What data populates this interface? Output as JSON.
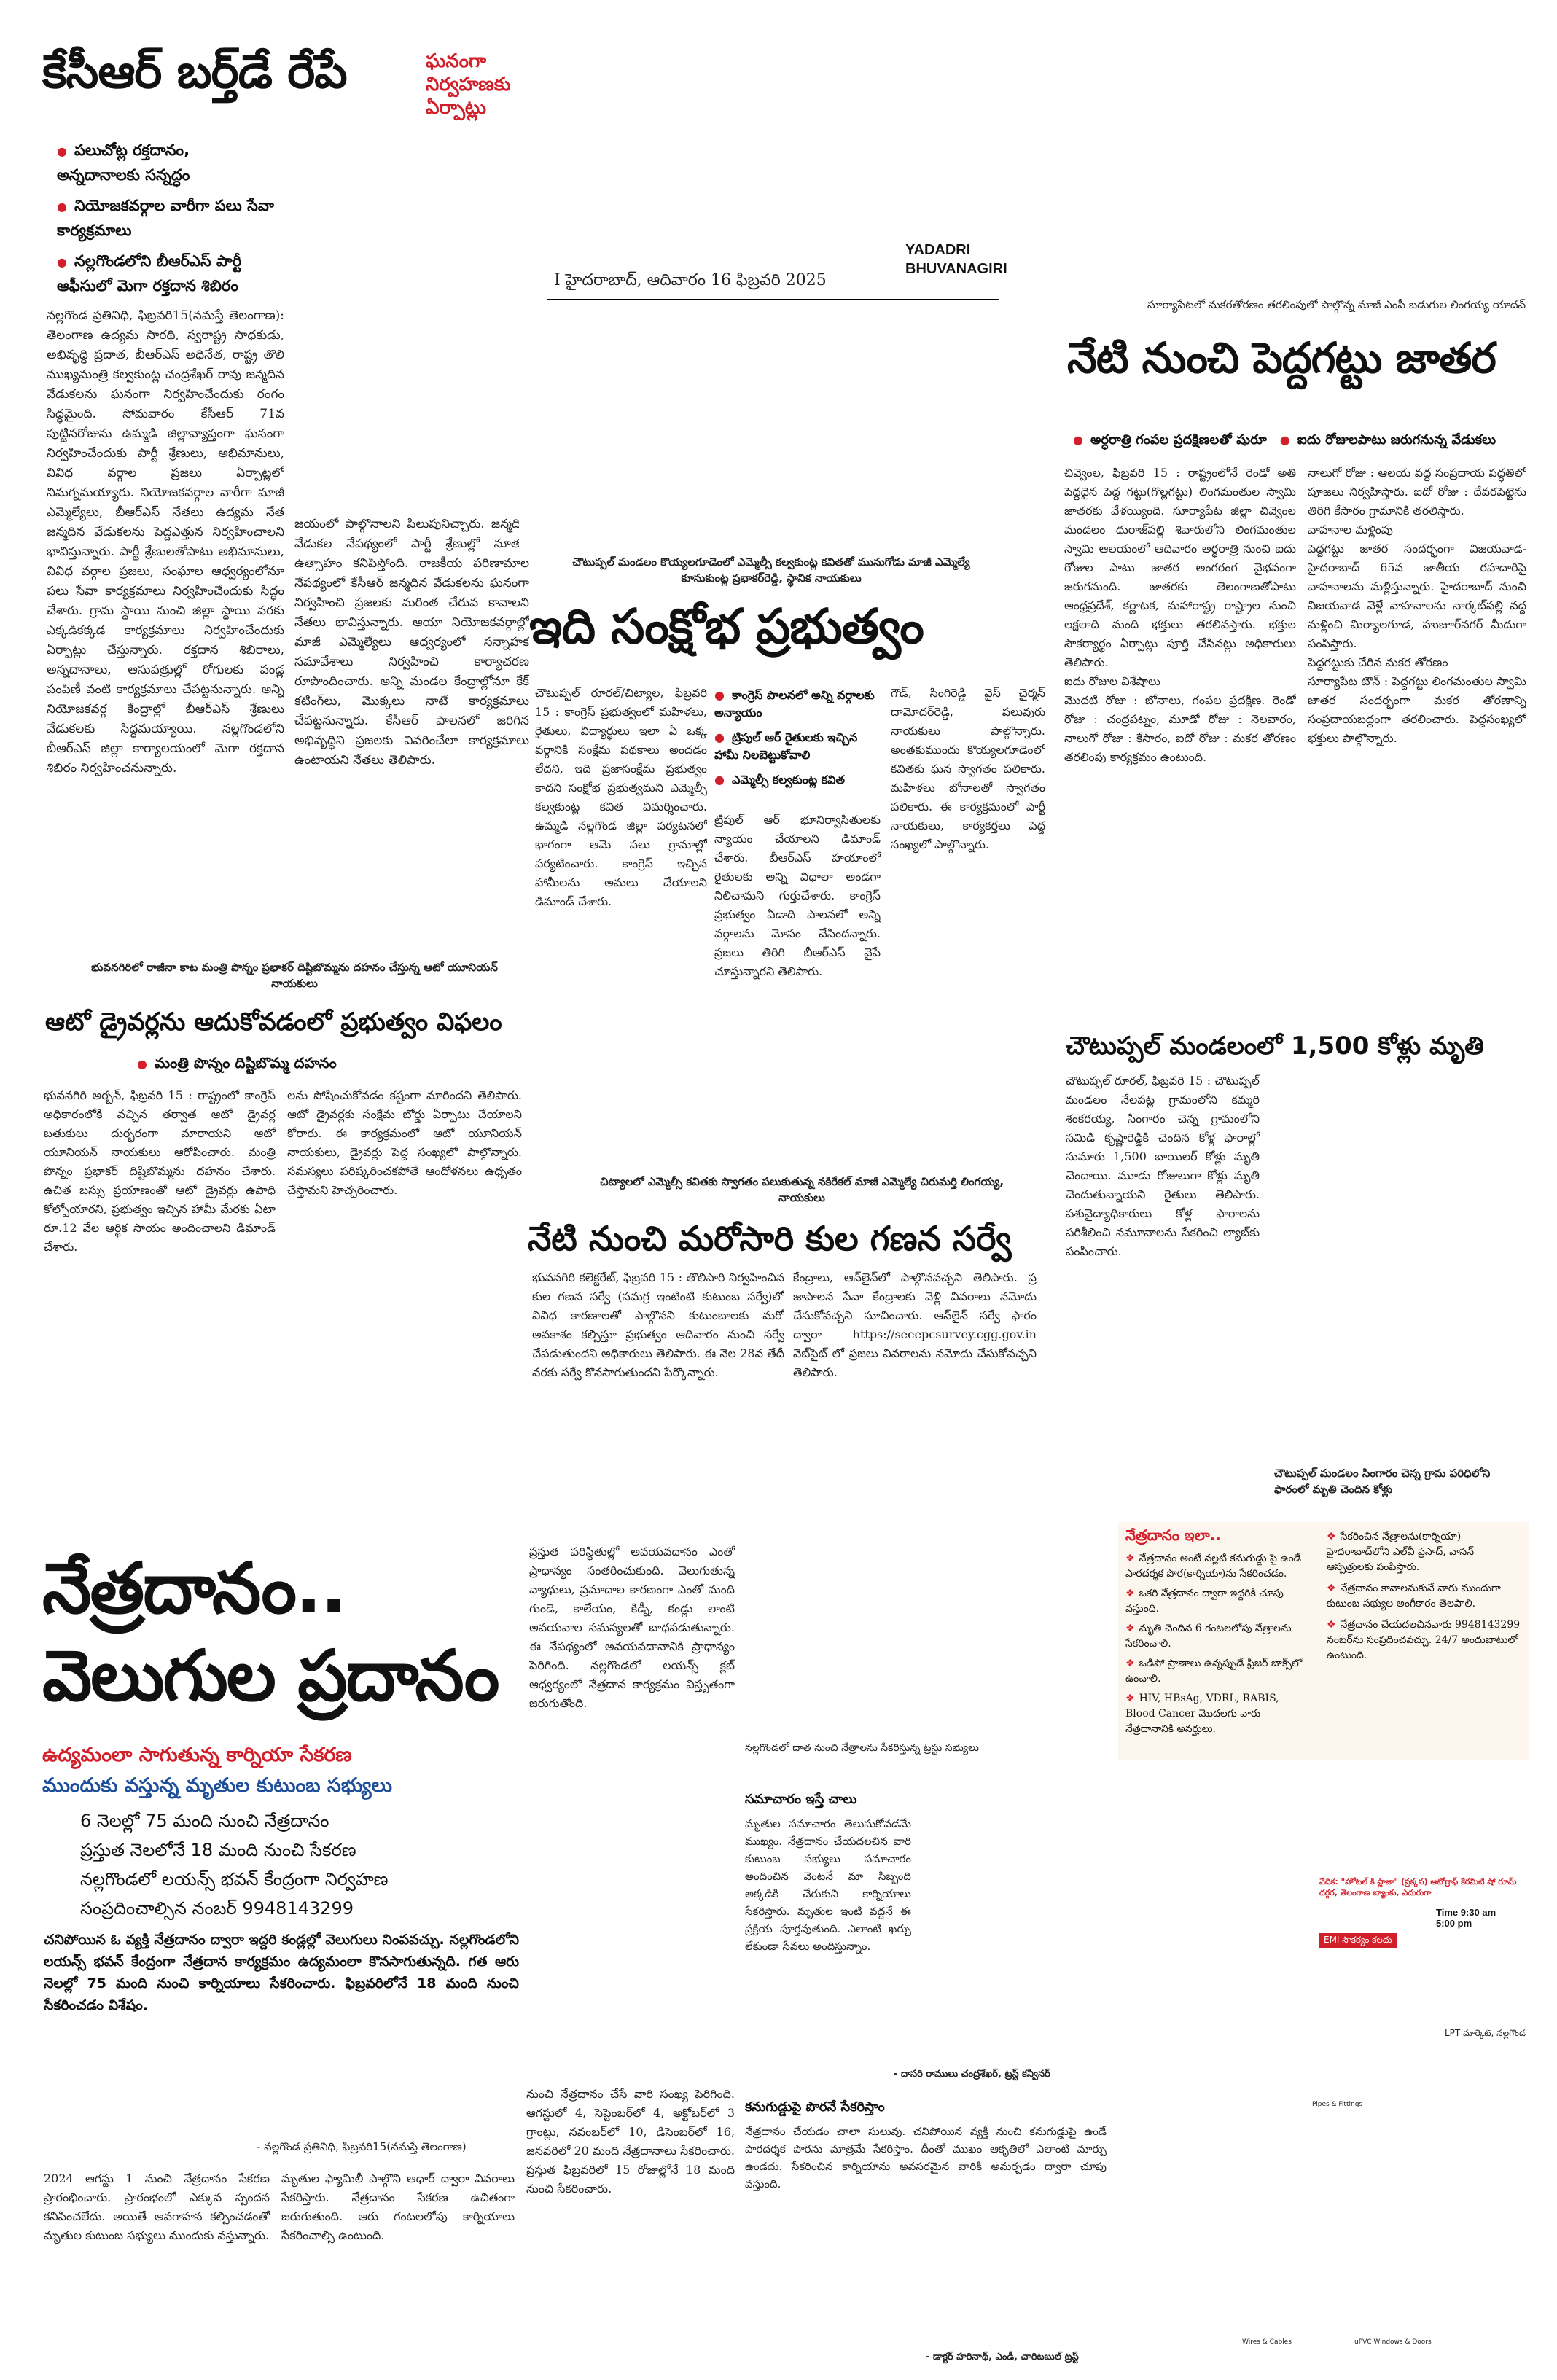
{
  "masthead": {
    "date_line": "I     హైదరాబాద్, ఆదివారం 16 ఫిబ్రవరి 2025",
    "edition": "YADADRI\nBHUVANAGIRI"
  },
  "story1": {
    "headline": "కేసీఆర్ బర్త్‌డే రేపే",
    "side_deck": "ఘనంగా నిర్వహణకు ఏర్పాట్లు",
    "bullets": [
      "పలుచోట్ల రక్తదానం, అన్నదానాలకు సన్నద్ధం",
      "నియోజకవర్గాల వారీగా పలు సేవా కార్యక్రమాలు",
      "నల్లగొండలోని బీఆర్ఎస్ పార్టీ ఆఫీసులో మెగా రక్తదాన శిబిరం"
    ],
    "col1": "నల్లగొండ ప్రతినిధి, ఫిబ్రవరి15(నమస్తే తెలంగాణ): తెలంగాణ ఉద్యమ సారథి, స్వరాష్ట్ర సాధకుడు, అభివృద్ధి ప్రదాత, బీఆర్ఎస్ అధినేత, రాష్ట్ర తొలి ముఖ్యమంత్రి కల్వకుంట్ల చంద్రశేఖర్ రావు జన్మదిన వేడుకలను ఘనంగా నిర్వహించేందుకు రంగం సిద్ధమైంది. సోమవారం కేసీఆర్ 71వ పుట్టినరోజును ఉమ్మడి జిల్లావ్యాప్తంగా ఘనంగా నిర్వహించేందుకు పార్టీ శ్రేణులు, అభిమానులు, వివిధ వర్గాల ప్రజలు ఏర్పాట్లలో నిమగ్నమయ్యారు. నియోజకవర్గాల వారీగా మాజీ ఎమ్మెల్యేలు, బీఆర్ఎస్ నేతలు ఉద్యమ నేత జన్మదిన వేడుకలను పెద్దఎత్తున నిర్వహించాలని భావిస్తున్నారు. పార్టీ శ్రేణులతోపాటు అభిమానులు, వివిధ వర్గాల ప్రజలు, సంఘాల ఆధ్వర్యంలోనూ పలు సేవా కార్యక్రమాలు నిర్వహించేందుకు సిద్ధం చేశారు. గ్రామ స్థాయి నుంచి జిల్లా స్థాయి వరకు ఎక్కడికక్కడ కార్యక్రమాలు నిర్వహించేందుకు ఏర్పాట్లు చేస్తున్నారు. రక్తదాన శిబిరాలు, అన్నదానాలు, ఆసుపత్రుల్లో రోగులకు పండ్ల పంపిణీ వంటి కార్యక్రమాలు చేపట్టనున్నారు. అన్ని నియోజకవర్గ కేంద్రాల్లో బీఆర్ఎస్ శ్రేణులు వేడుకలకు సిద్ధమయ్యాయి. నల్లగొండలోని బీఆర్ఎస్ జిల్లా కార్యాలయంలో మెగా రక్తదాన శిబిరం నిర్వహించనున్నారు.",
    "col2": "జయంలో పాల్గొనాలని పిలుపునిచ్చారు. జన్మదిన వేడుకల నేపథ్యంలో పార్టీ శ్రేణుల్లో నూతన ఉత్సాహం కనిపిస్తోంది. రాజకీయ పరిణామాల నేపథ్యంలో కేసీఆర్ జన్మదిన వేడుకలను ఘనంగా నిర్వహించి ప్రజలకు మరింత చేరువ కావాలని నేతలు భావిస్తున్నారు. ఆయా నియోజకవర్గాల్లో మాజీ ఎమ్మెల్యేలు ఆధ్వర్యంలో సన్నాహక సమావేశాలు నిర్వహించి కార్యాచరణ రూపొందించారు. అన్ని మండల కేంద్రాల్లోనూ కేక్ కటింగ్‌లు, మొక్కలు నాటే కార్యక్రమాలు చేపట్టనున్నారు. కేసీఆర్ పాలనలో జరిగిన అభివృద్ధిని ప్రజలకు వివరించేలా కార్యక్రమాలు ఉంటాయని నేతలు తెలిపారు."
  },
  "story2": {
    "kicker": "సూర్యాపేటలో మకరతోరణం తరలింపులో పాల్గొన్న మాజీ ఎంపీ బడుగుల లింగయ్య యాదవ్",
    "headline": "నేటి నుంచి పెద్దగట్టు జాతర",
    "bullets": [
      "అర్ధరాత్రి గంపల ప్రదక్షిణలతో షురూ",
      "ఐదు రోజులపాటు జరుగనున్న వేడుకలు"
    ],
    "col1": "చివ్వెంల, ఫిబ్రవరి 15 : రాష్ట్రంలోనే రెండో అతి పెద్దదైన పెద్ద గట్టు(గొల్లగట్టు) లింగమంతుల స్వామి జాతరకు వేళయ్యింది. సూర్యాపేట జిల్లా చివ్వెంల మండలం దురాజ్‌పల్లి శివారులోని లింగమంతుల స్వామి ఆలయంలో ఆదివారం అర్ధరాత్రి నుంచి ఐదు రోజుల పాటు జాతర అంగరంగ వైభవంగా జరుగనుంది. జాతరకు తెలంగాణతోపాటు ఆంధ్రప్రదేశ్, కర్ణాటక, మహారాష్ట్ర రాష్ట్రాల నుంచి లక్షలాది మంది భక్తులు తరలివస్తారు. భక్తుల సౌకర్యార్థం ఏర్పాట్లు పూర్తి చేసినట్లు అధికారులు తెలిపారు.\nఐదు రోజుల విశేషాలు\nమొదటి రోజు : బోనాలు, గంపల ప్రదక్షిణ. రెండో రోజు : చంద్రపట్నం, మూడో రోజు : నెలవారం, నాలుగో రోజు : కేసారం, ఐదో రోజు : మకర తోరణం తరలింపు కార్యక్రమం ఉంటుంది.",
    "col2": "నాలుగో రోజు : ఆలయ వద్ద సంప్రదాయ పద్ధతిలో పూజలు నిర్వహిస్తారు. ఐదో రోజు : దేవరపెట్టెను తిరిగి కేసారం గ్రామానికి తరలిస్తారు.\nవాహనాల మళ్లింపు\nపెద్దగట్టు జాతర సందర్భంగా విజయవాడ-హైదరాబాద్ 65వ జాతీయ రహదారిపై వాహనాలను మళ్లిస్తున్నారు. హైదరాబాద్ నుంచి విజయవాడ వెళ్లే వాహనాలను నార్కట్‌పల్లి వద్ద మళ్లించి మిర్యాలగూడ, హుజూర్‌నగర్ మీదుగా పంపిస్తారు.\nపెద్దగట్టుకు చేరిన మకర తోరణం\nసూర్యాపేట టౌన్ : పెద్దగట్టు లింగమంతుల స్వామి జాతర సందర్భంగా మకర తోరణాన్ని సంప్రదాయబద్ధంగా తరలించారు. పెద్దసంఖ్యలో భక్తులు పాల్గొన్నారు."
  },
  "story3": {
    "kicker": "చౌటుప్పల్ మండలం కొయ్యలగూడెంలో ఎమ్మెల్సీ కల్వకుంట్ల కవితతో మునుగోడు మాజీ ఎమ్మెల్యే కూసుకుంట్ల ప్రభాకర్‌రెడ్డి, స్థానిక నాయకులు",
    "headline": "ఇది సంక్షోభ ప్రభుత్వం",
    "bullets": [
      "కాంగ్రెస్ పాలనలో అన్ని వర్గాలకు అన్యాయం",
      "ట్రిపుల్ ఆర్ రైతులకు ఇచ్చిన హామీ నిలబెట్టుకోవాలి",
      "ఎమ్మెల్సీ కల్వకుంట్ల కవిత"
    ],
    "col1": "చౌటుప్పల్ రూరల్/చిట్యాల, ఫిబ్రవరి 15 : కాంగ్రెస్ ప్రభుత్వంలో మహిళలు, రైతులు, విద్యార్థులు ఇలా ఏ ఒక్క వర్గానికి సంక్షేమ పథకాలు అందడం లేదని, ఇది ప్రజాసంక్షేమ ప్రభుత్వం కాదని సంక్షోభ ప్రభుత్వమని ఎమ్మెల్సీ కల్వకుంట్ల కవిత విమర్శించారు. ఉమ్మడి నల్లగొండ జిల్లా పర్యటనలో భాగంగా ఆమె పలు గ్రామాల్లో పర్యటించారు. కాంగ్రెస్ ఇచ్చిన హామీలను అమలు చేయాలని డిమాండ్ చేశారు.",
    "col2": "ట్రిపుల్ ఆర్ భూనిర్వాసితులకు న్యాయం చేయాలని డిమాండ్ చేశారు. బీఆర్ఎస్ హయాంలో రైతులకు అన్ని విధాలా అండగా నిలిచామని గుర్తుచేశారు. కాంగ్రెస్ ప్రభుత్వం ఏడాది పాలనలో అన్ని వర్గాలను మోసం చేసిందన్నారు. ప్రజలు తిరిగి బీఆర్ఎస్ వైపే చూస్తున్నారని తెలిపారు.",
    "col3": "గౌడ్, సింగిరెడ్డి వైస్ చైర్మన్ దామోదర్‌రెడ్డి, పలువురు నాయకులు పాల్గొన్నారు. అంతకుముందు కొయ్యలగూడెంలో కవితకు ఘన స్వాగతం పలికారు. మహిళలు బోనాలతో స్వాగతం పలికారు. ఈ కార్యక్రమంలో పార్టీ నాయకులు, కార్యకర్తలు పెద్ద సంఖ్యలో పాల్గొన్నారు."
  },
  "story4": {
    "kicker": "భువనగిరిలో రాజీనా కాట మంత్రి పొన్నం ప్రభాకర్ దిష్టిబొమ్మను దహనం చేస్తున్న ఆటో యూనియన్ నాయకులు",
    "headline": "ఆటో డ్రైవర్లను ఆదుకోవడంలో ప్రభుత్వం విఫలం",
    "bullet": "మంత్రి పొన్నం దిష్టిబొమ్మ దహనం",
    "col1": "భువనగిరి అర్బన్, ఫిబ్రవరి 15 : రాష్ట్రంలో కాంగ్రెస్ అధికారంలోకి వచ్చిన తర్వాత ఆటో డ్రైవర్ల బతుకులు దుర్భరంగా మారాయని ఆటో యూనియన్ నాయకులు ఆరోపించారు. మంత్రి పొన్నం ప్రభాకర్ దిష్టిబొమ్మను దహనం చేశారు. ఉచిత బస్సు ప్రయాణంతో ఆటో డ్రైవర్లు ఉపాధి కోల్పోయారని, ప్రభుత్వం ఇచ్చిన హామీ మేరకు ఏటా రూ.12 వేల ఆర్థిక సాయం అందించాలని డిమాండ్ చేశారు.",
    "col2": "లను పోషించుకోవడం కష్టంగా మారిందని తెలిపారు. ఆటో డ్రైవర్లకు సంక్షేమ బోర్డు ఏర్పాటు చేయాలని కోరారు. ఈ కార్యక్రమంలో ఆటో యూనియన్ నాయకులు, డ్రైవర్లు పెద్ద సంఖ్యలో పాల్గొన్నారు. సమస్యలు పరిష్కరించకపోతే ఆందోళనలు ఉధృతం చేస్తామని హెచ్చరించారు."
  },
  "story5": {
    "kicker": "చిట్యాలలో ఎమ్మెల్సీ కవితకు స్వాగతం పలుకుతున్న నకిరేకల్ మాజీ ఎమ్మెల్యే చిరుమర్తి లింగయ్య, నాయకులు",
    "headline": "నేటి నుంచి మరోసారి కుల గణన సర్వే",
    "col1": "భువనగిరి కలెక్టరేట్, ఫిబ్రవరి 15 : తొలిసారి నిర్వహించిన కుల గణన సర్వే (సమగ్ర ఇంటింటి కుటుంబ సర్వే)లో వివిధ కారణాలతో పాల్గొనని కుటుంబాలకు మరో అవకాశం కల్పిస్తూ ప్రభుత్వం ఆదివారం నుంచి సర్వే చేపడుతుందని అధికారులు తెలిపారు. ఈ నెల 28వ తేదీ వరకు సర్వే కొనసాగుతుందని పేర్కొన్నారు.",
    "col2": "కేంద్రాలు, ఆన్‌లైన్‌లో పాల్గొనవచ్చని తెలిపారు. ప్రజాపాలన సేవా కేంద్రాలకు వెళ్లి వివరాలు నమోదు చేసుకోవచ్చని సూచించారు. ఆన్‌లైన్ సర్వే ఫారం ద్వారా https://seeepcsurvey.cgg.gov.in వెబ్‌సైట్ లో ప్రజలు వివరాలను నమోదు చేసుకోవచ్చని తెలిపారు."
  },
  "story6": {
    "headline": "చౌటుప్పల్ మండలంలో 1,500 కోళ్లు మృతి",
    "body": "చౌటుప్పల్ రూరల్, ఫిబ్రవరి 15 : చౌటుప్పల్ మండలం నేలపట్ల గ్రామంలోని కమ్మరి శంకరయ్య, సింగారం చెన్న గ్రామంలోని సమిడి కృష్ణారెడ్డికి చెందిన కోళ్ల ఫారాల్లో సుమారు 1,500 బాయిలర్ కోళ్లు మృతి చెందాయి. మూడు రోజులుగా కోళ్లు మృతి చెందుతున్నాయని రైతులు తెలిపారు. పశువైద్యాధికారులు కోళ్ల ఫారాలను పరిశీలించి నమూనాలను సేకరించి ల్యాబ్‌కు పంపించారు.",
    "caption": "చౌటుప్పల్ మండలం సింగారం చెన్న గ్రామ పరిధిలోని ఫారంలో మృతి చెందిన కోళ్లు"
  },
  "story7": {
    "headline_line1": "నేత్రదానం..",
    "headline_line2": "వెలుగుల ప్రదానం",
    "sub1": "ఉద్యమంలా సాగుతున్న కార్నియా సేకరణ",
    "sub2": "ముందుకు వస్తున్న మృతుల కుటుంబ సభ్యులు",
    "points": [
      "6 నెలల్లో 75 మంది నుంచి నేత్రదానం",
      "ప్రస్తుత నెలలోనే 18 మంది నుంచి సేకరణ",
      "నల్లగొండలో లయన్స్ భవన్ కేంద్రంగా నిర్వహణ",
      "సంప్రదించాల్సిన నంబర్ 9948143299"
    ],
    "intro": "చనిపోయిన ఓ వ్యక్తి నేత్రదానం ద్వారా ఇద్దరి కండ్లల్లో వెలుగులు నింపవచ్చు. నల్లగొండలోని లయన్స్ భవన్ కేంద్రంగా నేత్రదాన కార్యక్రమం ఉద్యమంలా కొనసాగుతున్నది. గత ఆరు నెలల్లో 75 మంది నుంచి కార్నియాలు సేకరించారు. ఫిబ్రవరిలోనే 18 మంది నుంచి సేకరించడం విశేషం.",
    "byline": "- నల్లగొండ ప్రతినిధి, ఫిబ్రవరి15(నమస్తే తెలంగాణ)",
    "col1": "ప్రస్తుత పరిస్థితుల్లో అవయవదానం ఎంతో ప్రాధాన్యం సంతరించుకుంది. వెలుగుతున్న వ్యాధులు, ప్రమాదాల కారణంగా ఎంతో మంది గుండె, కాలేయం, కిడ్నీ, కండ్లు లాంటి అవయవాల సమస్యలతో బాధపడుతున్నారు. ఈ నేపథ్యంలో అవయవదానానికి ప్రాధాన్యం పెరిగింది. నల్లగొండలో లయన్స్ క్లబ్ ఆధ్వర్యంలో నేత్రదాన కార్యక్రమం విస్తృతంగా జరుగుతోంది.",
    "col2": "2024 ఆగస్టు 1 నుంచి నేత్రదానం సేకరణ ప్రారంభించారు. ప్రారంభంలో ఎక్కువ స్పందన కనిపించలేదు. అయితే అవగాహన కల్పించడంతో మృతుల కుటుంబ సభ్యులు ముందుకు వస్తున్నారు.",
    "col3": "మృతుల ఫ్యామిలీ పాల్గొని ఆధార్ ద్వారా వివరాలు సేకరిస్తారు. నేత్రదానం సేకరణ ఉచితంగా జరుగుతుంది. ఆరు గంటలలోపు కార్నియాలు సేకరించాల్సి ఉంటుంది.",
    "col4": "నుంచి నేత్రదానం చేసే వారి సంఖ్య పెరిగింది. ఆగస్టులో 4, సెప్టెంబర్‌లో 4, అక్టోబర్‌లో 3 గ్రాంట్లు, నవంబర్‌లో 10, డిసెంబర్‌లో 16, జనవరిలో 20 మంది నేత్రదానాలు సేకరించారు. ప్రస్తుత ఫిబ్రవరిలో 15 రోజుల్లోనే 18 మంది నుంచి సేకరించారు."
  },
  "eye_box": {
    "title": "నేత్రదానం ఇలా..",
    "items": [
      "నేత్రదానం అంటే నల్లటి కనుగుడ్డు పై ఉండే పారదర్శక పొర(కార్నియా)ను సేకరించడం.",
      "ఒకరి నేత్రదానం ద్వారా ఇద్దరికి చూపు వస్తుంది.",
      "మృతి చెందిన 6 గంటలలోపు నేత్రాలను సేకరించాలి.",
      "ఒడిపో ప్రాణాలు ఉన్నప్పుడే ఫ్రీజర్ బాక్స్‌లో ఉంచాలి.",
      "HIV, HBsAg, VDRL, RABIS, Blood Cancer మొదలగు వారు నేత్రదానానికి అనర్హులు."
    ],
    "right_items": [
      "సేకరించిన నేత్రాలను(కార్నియా) హైదరాబాద్‌లోని ఎల్‌వీ ప్రసాద్, వాసన్ ఆస్పత్రులకు పంపిస్తారు.",
      "నేత్రదానం కావాలనుకునే వారు ముందుగా కుటుంబ సభ్యుల అంగీకారం తెలపాలి.",
      "నేత్రదానం చేయదలచినవారు 9948143299 నంబర్‌ను సంప్రదించవచ్చు. 24/7 అందుబాటులో ఉంటుంది."
    ],
    "photo_caption": "LPT మార్కెట్, నల్లగొండ"
  },
  "story8": {
    "kicker": "నల్లగొండలో దాత నుంచి నేత్రాలను సేకరిస్తున్న ట్రస్టు సభ్యులు",
    "h1": "సమాచారం ఇస్తే చాలు",
    "p1": "మృతుల సమాచారం తెలుసుకోవడమే ముఖ్యం. నేత్రదానం చేయదలచిన వారి కుటుంబ సభ్యులు సమాచారం అందించిన వెంటనే మా సిబ్బంది అక్కడికి చేరుకుని కార్నియాలు సేకరిస్తారు. మృతుల ఇంటి వద్దనే ఈ ప్రక్రియ పూర్తవుతుంది. ఎలాంటి ఖర్చు లేకుండా సేవలు అందిస్తున్నాం.",
    "sig1": "- దాసరి రాములు చంద్రశేఖర్, ట్రస్ట్ కన్వీనర్",
    "h2": "కనుగుడ్డుపై పొరనే సేకరిస్తాం",
    "p2": "నేత్రదానం చేయడం చాలా సులువు. చనిపోయిన వ్యక్తి నుంచి కనుగుడ్డుపై ఉండే పారదర్శక పొరను మాత్రమే సేకరిస్తాం. దీంతో ముఖం ఆకృతిలో ఎలాంటి మార్పు ఉండదు. సేకరించిన కార్నియాను అవసరమైన వారికి అమర్చడం ద్వారా చూపు వస్తుంది.",
    "sig2": "- డాక్టర్ హరినాథ్, ఎండీ, చారిటబుల్ ట్రస్ట్"
  },
  "ads": {
    "ad1": "వేదిక: \"హోటల్ కి ప్లాజా\" (ప్రక్కన) ఆటోగ్రాఫ్ కేరమిటి షో రూమ్ దగ్గర, తెలంగాణ బ్యాంకు, ఎదురుగా",
    "ad1_time": "Time 9:30 am\n5:00 pm",
    "ad1_tag": "EMI సౌకర్యం కలదు",
    "ad2": "Pipes & Fittings",
    "ad3": "Wires & Cables",
    "ad4": "uPVC Windows & Doors"
  },
  "colors": {
    "accent_red": "#d21f2a",
    "accent_blue": "#1f4f9a"
  }
}
